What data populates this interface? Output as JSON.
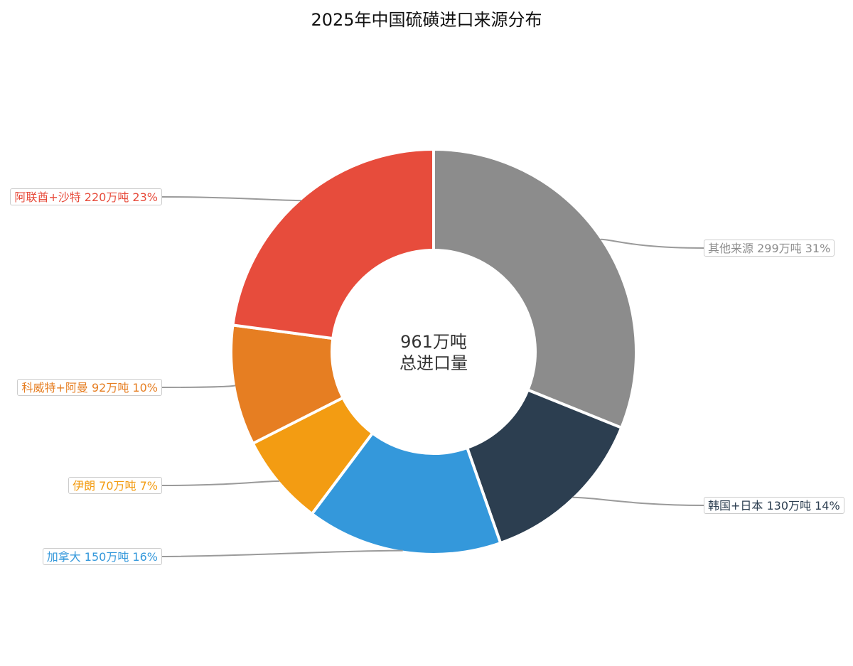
{
  "chart_data": {
    "type": "pie",
    "title": "2025年中国硫磺进口来源分布",
    "center_text": [
      "961万吨",
      "总进口量"
    ],
    "unit": "万吨",
    "slices": [
      {
        "name": "其他来源",
        "value": 299,
        "percent": "31%",
        "color": "#8c8c8c",
        "label": "其他来源 299万吨 31%"
      },
      {
        "name": "韩国+日本",
        "value": 130,
        "percent": "14%",
        "color": "#2c3e50",
        "label": "韩国+日本 130万吨 14%"
      },
      {
        "name": "加拿大",
        "value": 150,
        "percent": "16%",
        "color": "#3498db",
        "label": "加拿大 150万吨 16%"
      },
      {
        "name": "伊朗",
        "value": 70,
        "percent": "7%",
        "color": "#f39c12",
        "label": "伊朗 70万吨 7%"
      },
      {
        "name": "科威特+阿曼",
        "value": 92,
        "percent": "10%",
        "color": "#e67e22",
        "label": "科威特+阿曼 92万吨 10%"
      },
      {
        "name": "阿联酋+沙特",
        "value": 220,
        "percent": "23%",
        "color": "#e74c3c",
        "label": "阿联酋+沙特 220万吨 23%"
      }
    ]
  }
}
